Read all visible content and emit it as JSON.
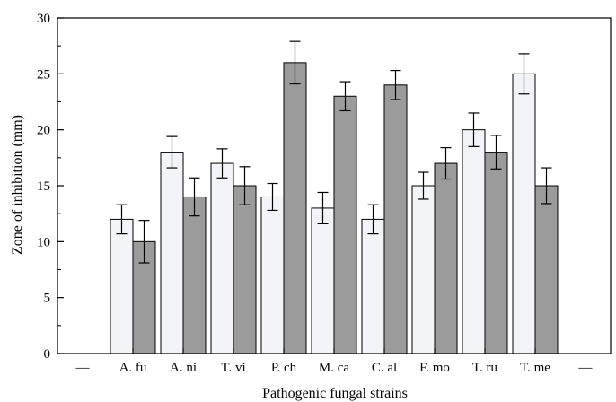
{
  "chart_data": {
    "type": "bar",
    "title": "",
    "xlabel": "Pathogenic fungal strains",
    "ylabel": "Zone of inhibition (mm)",
    "ylim": [
      0,
      30
    ],
    "yticks": [
      0,
      5,
      10,
      15,
      20,
      25,
      30
    ],
    "x_edge_labels": [
      "—",
      "—"
    ],
    "categories": [
      "A. fu",
      "A. ni",
      "T. vi",
      "P. ch",
      "M. ca",
      "C. al",
      "F. mo",
      "T. ru",
      "T. me"
    ],
    "series": [
      {
        "color": "#f3f4f7",
        "values": [
          12,
          18,
          17,
          14,
          13,
          12,
          15,
          20,
          25
        ],
        "errors": [
          1.3,
          1.4,
          1.3,
          1.2,
          1.4,
          1.3,
          1.2,
          1.5,
          1.8
        ]
      },
      {
        "color": "#9b9b9b",
        "values": [
          10,
          14,
          15,
          26,
          23,
          24,
          17,
          18,
          15
        ],
        "errors": [
          1.9,
          1.7,
          1.7,
          1.9,
          1.3,
          1.3,
          1.4,
          1.5,
          1.6
        ]
      }
    ],
    "grid": false,
    "legend": "none"
  }
}
